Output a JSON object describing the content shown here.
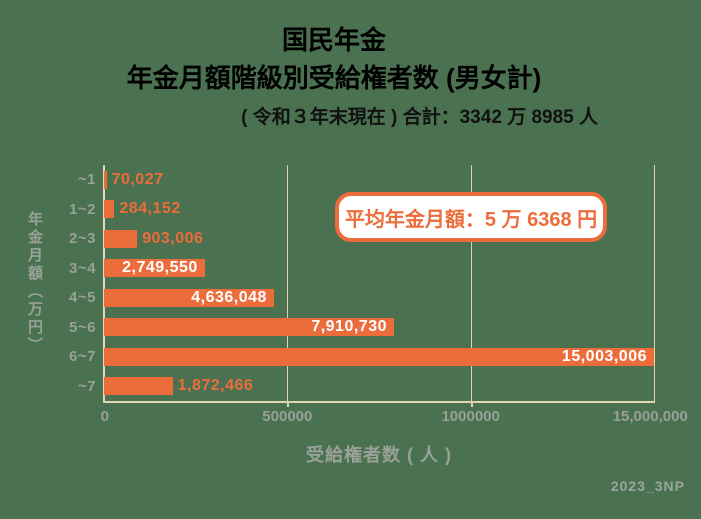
{
  "colors": {
    "background": "#4A7150",
    "bar_orange": "#EC6D3B",
    "axis_tan": "#E3D6B3",
    "label_gray": "#99A198",
    "title_black": "#111111",
    "bar_label_white": "#FFFFFF"
  },
  "header": {
    "title_line1": "国民年金",
    "title_line2": "年金月額階級別受給権者数 (男女計)",
    "title_line3": "( 令和３年末現在 ) 合計：3342 万 8985 人"
  },
  "footer": {
    "watermark": "2023_3NP"
  },
  "chart_data": {
    "type": "bar",
    "orientation": "horizontal",
    "title": "国民年金 年金月額階級別受給権者数 (男女計)",
    "subtitle": "( 令和３年末現在 ) 合計：3342 万 8985 人",
    "categories": [
      "~1",
      "1~2",
      "2~3",
      "3~4",
      "4~5",
      "5~6",
      "6~7",
      "~7"
    ],
    "values": [
      70027,
      284152,
      903006,
      2749550,
      4636048,
      7910730,
      15003006,
      1872466
    ],
    "value_labels": [
      "70,027",
      "284,152",
      "903,006",
      "2,749,550",
      "4,636,048",
      "7,910,730",
      "15,003,006",
      "1,872,466"
    ],
    "label_inside": [
      false,
      false,
      false,
      true,
      true,
      true,
      true,
      false
    ],
    "annotation": "平均年金月額：5 万 6368 円",
    "xlabel": "受給権者数 ( 人 )",
    "ylabel": "年金月額（万円）",
    "xticks": [
      "0",
      "500000",
      "1000000",
      "15,000,000"
    ],
    "xtick_positions_pct": [
      0,
      33.333,
      66.667,
      100
    ],
    "xlim": [
      0,
      15003006
    ],
    "grid": "vertical-on",
    "legend": "none",
    "bar_color": "#EC6D3B",
    "total_visible": "3342万8985人",
    "average_visible": "5万6368円"
  }
}
